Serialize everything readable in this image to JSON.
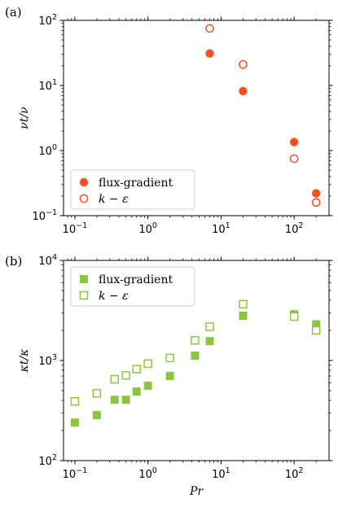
{
  "chart_data": [
    {
      "type": "scatter",
      "panel_label": "(a)",
      "xscale": "log",
      "yscale": "log",
      "xlim": [
        0.07,
        300
      ],
      "ylim": [
        0.1,
        100
      ],
      "xlabel": "",
      "ylabel": "νt/ν",
      "xticks": [
        {
          "value": 0.1,
          "label": "10",
          "exp": "−1"
        },
        {
          "value": 1,
          "label": "10",
          "exp": "0"
        },
        {
          "value": 10,
          "label": "10",
          "exp": "1"
        },
        {
          "value": 100,
          "label": "10",
          "exp": "2"
        }
      ],
      "yticks": [
        {
          "value": 0.1,
          "label": "10",
          "exp": "−1"
        },
        {
          "value": 1,
          "label": "10",
          "exp": "0"
        },
        {
          "value": 10,
          "label": "10",
          "exp": "1"
        },
        {
          "value": 100,
          "label": "10",
          "exp": "2"
        }
      ],
      "legend_position": "lower-left",
      "series": [
        {
          "name": "flux-gradient",
          "marker": "circle",
          "filled": true,
          "color": "#f4511e",
          "x": [
            7,
            20,
            100,
            200
          ],
          "y": [
            31,
            8.2,
            1.35,
            0.22
          ]
        },
        {
          "name": "k − ε",
          "marker": "circle",
          "filled": false,
          "color": "#f4511e",
          "x": [
            7,
            20,
            100,
            200
          ],
          "y": [
            75,
            21,
            0.75,
            0.16
          ]
        }
      ]
    },
    {
      "type": "scatter",
      "panel_label": "(b)",
      "xscale": "log",
      "yscale": "log",
      "xlim": [
        0.07,
        300
      ],
      "ylim": [
        100,
        10000
      ],
      "xlabel": "Pr",
      "ylabel": "κt/κ",
      "xticks": [
        {
          "value": 0.1,
          "label": "10",
          "exp": "−1"
        },
        {
          "value": 1,
          "label": "10",
          "exp": "0"
        },
        {
          "value": 10,
          "label": "10",
          "exp": "1"
        },
        {
          "value": 100,
          "label": "10",
          "exp": "2"
        }
      ],
      "yticks": [
        {
          "value": 100,
          "label": "10",
          "exp": "2"
        },
        {
          "value": 1000,
          "label": "10",
          "exp": "3"
        },
        {
          "value": 10000,
          "label": "10",
          "exp": "4"
        }
      ],
      "legend_position": "upper-left",
      "series": [
        {
          "name": "flux-gradient",
          "marker": "square",
          "filled": true,
          "color": "#8cc63f",
          "x": [
            0.1,
            0.2,
            0.35,
            0.5,
            0.7,
            1,
            2,
            4.4,
            7,
            20,
            100,
            200
          ],
          "y": [
            240,
            285,
            405,
            405,
            490,
            560,
            700,
            1120,
            1560,
            2800,
            2900,
            2300
          ]
        },
        {
          "name": "k − ε",
          "marker": "square",
          "filled": false,
          "color": "#8cc63f",
          "x": [
            0.1,
            0.2,
            0.35,
            0.5,
            0.7,
            1,
            2,
            4.4,
            7,
            20,
            100,
            200
          ],
          "y": [
            390,
            470,
            650,
            710,
            820,
            930,
            1060,
            1590,
            2180,
            3650,
            2750,
            2000
          ]
        }
      ]
    }
  ]
}
